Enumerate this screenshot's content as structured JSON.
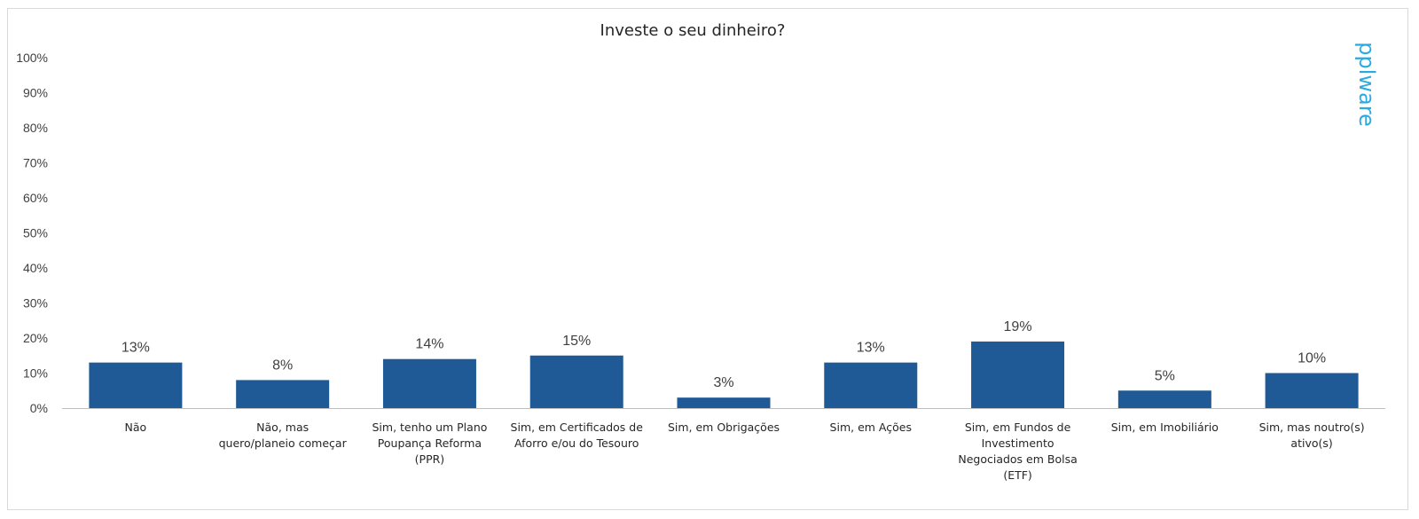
{
  "watermark": "pplware",
  "colors": {
    "bar": "#1f5a96",
    "watermark": "#29abe2",
    "axis": "#bfbfbf"
  },
  "chart_data": {
    "type": "bar",
    "title": "Investe o seu dinheiro?",
    "xlabel": "",
    "ylabel": "",
    "ylim": [
      0,
      100
    ],
    "y_ticks": [
      "0%",
      "10%",
      "20%",
      "30%",
      "40%",
      "50%",
      "60%",
      "70%",
      "80%",
      "90%",
      "100%"
    ],
    "grid": false,
    "categories": [
      [
        "Não"
      ],
      [
        "Não, mas",
        "quero/planeio começar"
      ],
      [
        "Sim, tenho um Plano",
        "Poupança Reforma",
        "(PPR)"
      ],
      [
        "Sim, em Certificados de",
        "Aforro e/ou do Tesouro"
      ],
      [
        "Sim, em Obrigações"
      ],
      [
        "Sim, em Ações"
      ],
      [
        "Sim, em Fundos de",
        "Investimento",
        "Negociados em Bolsa",
        "(ETF)"
      ],
      [
        "Sim, em Imobiliário"
      ],
      [
        "Sim, mas noutro(s)",
        "ativo(s)"
      ]
    ],
    "values": [
      13,
      8,
      14,
      15,
      3,
      13,
      19,
      5,
      10
    ],
    "data_labels": [
      "13%",
      "8%",
      "14%",
      "15%",
      "3%",
      "13%",
      "19%",
      "5%",
      "10%"
    ]
  }
}
